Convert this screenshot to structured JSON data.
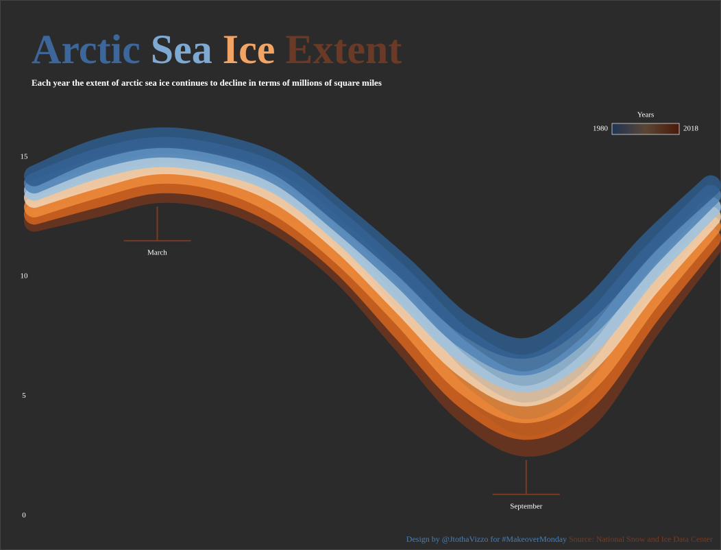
{
  "chart_data": {
    "type": "line",
    "title_parts": [
      {
        "text": "Arctic",
        "color": "#3d679b"
      },
      {
        "text": "Sea",
        "color": "#7ea9d2"
      },
      {
        "text": "Ice",
        "color": "#f2a464"
      },
      {
        "text": "Extent",
        "color": "#6b3a26"
      }
    ],
    "subtitle": "Each year the extent of arctic sea ice continues to decline in terms of millions of square miles",
    "categories": [
      null,
      null,
      "March",
      null,
      null,
      null,
      null,
      null,
      "September",
      null,
      null,
      null
    ],
    "ylim": [
      0,
      17
    ],
    "yticks": [
      0,
      5,
      10,
      15
    ],
    "series": [
      {
        "color": "#2f5d8d",
        "values": [
          14.2,
          15.3,
          15.8,
          15.5,
          14.6,
          12.6,
          10.4,
          8.0,
          7.0,
          8.6,
          11.4,
          13.8
        ]
      },
      {
        "color": "#4f82b5",
        "values": [
          13.9,
          14.9,
          15.4,
          15.1,
          14.2,
          12.2,
          9.9,
          7.4,
          6.3,
          7.9,
          10.8,
          13.4
        ]
      },
      {
        "color": "#9cc3e2",
        "values": [
          13.6,
          14.5,
          15.0,
          14.7,
          13.8,
          11.8,
          9.3,
          6.8,
          5.6,
          7.1,
          10.2,
          12.9
        ]
      },
      {
        "color": "#f1d4b4",
        "values": [
          13.3,
          14.1,
          14.7,
          14.4,
          13.4,
          11.4,
          8.8,
          6.2,
          5.0,
          6.4,
          9.6,
          12.5
        ]
      },
      {
        "color": "#f08c3c",
        "values": [
          12.9,
          13.7,
          14.3,
          14.0,
          12.9,
          10.9,
          8.3,
          5.5,
          4.3,
          5.6,
          9.0,
          12.1
        ]
      },
      {
        "color": "#d2641e",
        "values": [
          12.6,
          13.3,
          13.9,
          13.6,
          12.5,
          10.5,
          7.7,
          4.9,
          3.6,
          4.9,
          8.4,
          11.6
        ]
      },
      {
        "color": "#6e3620",
        "values": [
          12.3,
          12.9,
          13.5,
          13.2,
          12.1,
          10.1,
          7.2,
          4.3,
          2.9,
          4.1,
          7.8,
          11.2
        ]
      }
    ],
    "legend": {
      "title": "Years",
      "start": 1980,
      "end": 2018,
      "colors": [
        "#1f3553",
        "#5b4636",
        "#4a1808"
      ]
    },
    "annotation_color": "#7a3a22",
    "footer": {
      "credit": "Design by @JtothaVizzo for #MakeoverMonday",
      "credit_color": "#4a7fb4",
      "source": "Source: National Snow and Ice Data Center",
      "source_color": "#7a3a22"
    }
  }
}
